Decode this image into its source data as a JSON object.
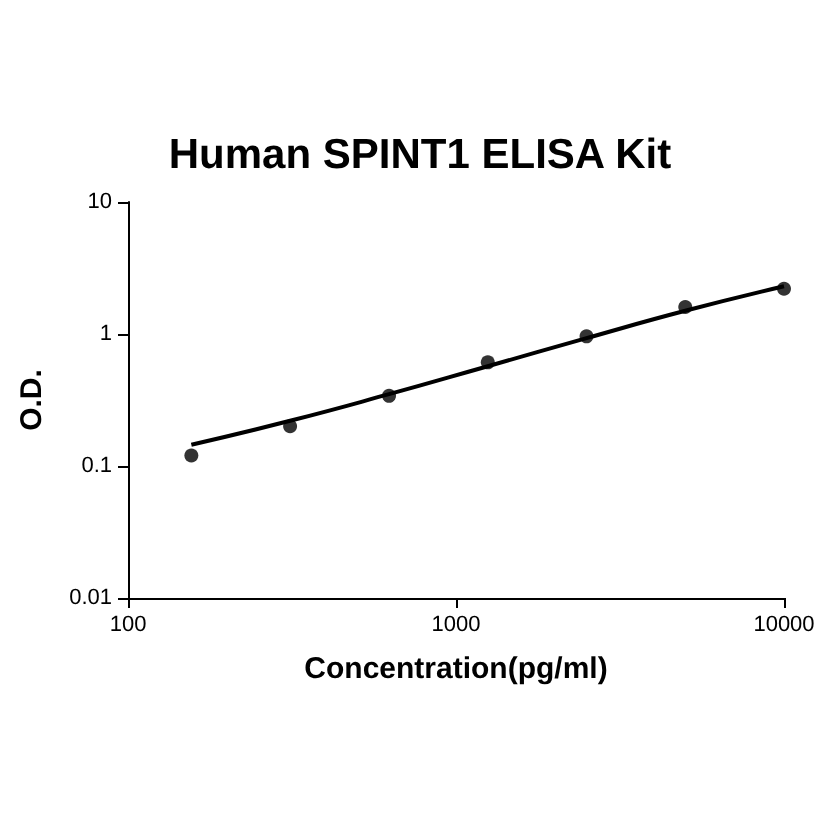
{
  "chart_data": {
    "type": "scatter",
    "title": "Human SPINT1 ELISA Kit",
    "xlabel": "Concentration(pg/ml)",
    "ylabel": "O.D.",
    "log": "xy",
    "grid": false,
    "xlim": [
      100,
      10000
    ],
    "xticks": [
      100,
      1000,
      10000
    ],
    "ylim": [
      0.01,
      10
    ],
    "yticks": [
      0.01,
      0.1,
      1,
      10
    ],
    "series": [
      {
        "color": "#000000",
        "marker": "circle",
        "x": [
          156,
          312,
          625,
          1250,
          2500,
          5000,
          10000
        ],
        "values": [
          0.12,
          0.2,
          0.34,
          0.61,
          0.96,
          1.6,
          2.2
        ]
      },
      {
        "type": "line",
        "color": "#000000",
        "marker": "none",
        "line_style": "solid",
        "x": [
          156,
          312,
          625,
          1250,
          2500,
          5000,
          10000
        ],
        "values": [
          0.145,
          0.22,
          0.35,
          0.57,
          0.93,
          1.5,
          2.3
        ]
      }
    ]
  }
}
